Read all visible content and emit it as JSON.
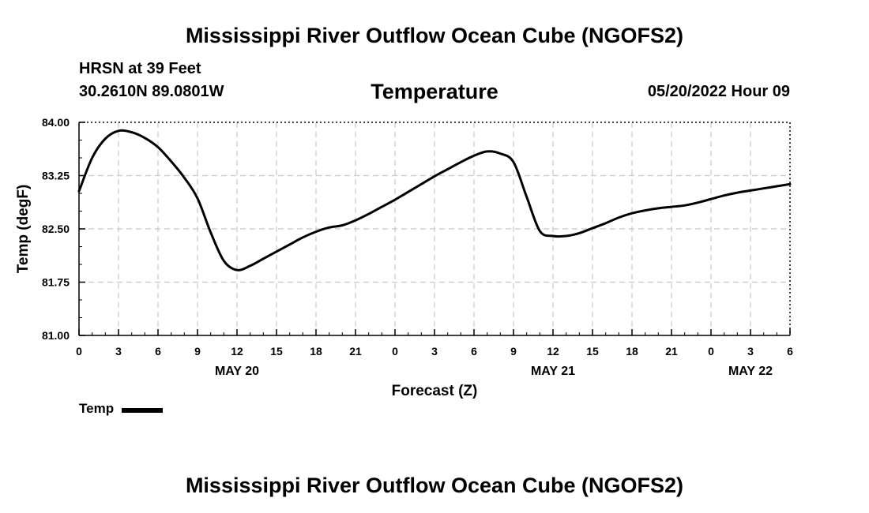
{
  "header": {
    "title": "Mississippi River Outflow Ocean Cube (NGOFS2)",
    "station": "HRSN at 39 Feet",
    "coords": "30.2610N  89.0801W",
    "subtitle": "Temperature",
    "datetime": "05/20/2022 Hour 09"
  },
  "footer": {
    "title": "Mississippi River Outflow Ocean Cube (NGOFS2)"
  },
  "legend": {
    "label": "Temp"
  },
  "chart_data": {
    "type": "line",
    "title": "Temperature",
    "xlabel": "Forecast (Z)",
    "ylabel": "Temp (degF)",
    "xlim": [
      0,
      54
    ],
    "ylim": [
      81.0,
      84.0
    ],
    "yticks": [
      81.0,
      81.75,
      82.5,
      83.25,
      84.0
    ],
    "ytick_labels": [
      "81.00",
      "81.75",
      "82.50",
      "83.25",
      "84.00"
    ],
    "xticks": [
      0,
      3,
      6,
      9,
      12,
      15,
      18,
      21,
      24,
      27,
      30,
      33,
      36,
      39,
      42,
      45,
      48,
      51,
      54
    ],
    "xtick_labels": [
      "0",
      "3",
      "6",
      "9",
      "12",
      "15",
      "18",
      "21",
      "0",
      "3",
      "6",
      "9",
      "12",
      "15",
      "18",
      "21",
      "0",
      "3",
      "6"
    ],
    "date_labels": [
      {
        "x": 12,
        "label": "MAY 20"
      },
      {
        "x": 36,
        "label": "MAY 21"
      },
      {
        "x": 51,
        "label": "MAY 22"
      }
    ],
    "grid": true,
    "legend": "bottom-left",
    "series": [
      {
        "name": "Temp",
        "color": "#000000",
        "x": [
          0,
          1,
          2,
          3,
          4,
          5,
          6,
          7,
          8,
          9,
          10,
          11,
          12,
          13,
          14,
          15,
          16,
          17,
          18,
          19,
          20,
          21,
          22,
          23,
          24,
          25,
          26,
          27,
          28,
          29,
          30,
          31,
          32,
          33,
          34,
          35,
          36,
          37,
          38,
          39,
          40,
          41,
          42,
          43,
          44,
          45,
          46,
          47,
          48,
          49,
          50,
          51,
          52,
          53,
          54
        ],
        "values": [
          83.03,
          83.5,
          83.77,
          83.88,
          83.86,
          83.78,
          83.65,
          83.45,
          83.22,
          82.93,
          82.45,
          82.05,
          81.92,
          81.98,
          82.08,
          82.18,
          82.28,
          82.38,
          82.46,
          82.52,
          82.55,
          82.62,
          82.71,
          82.81,
          82.91,
          83.02,
          83.13,
          83.24,
          83.34,
          83.44,
          83.53,
          83.59,
          83.56,
          83.44,
          82.95,
          82.47,
          82.4,
          82.4,
          82.44,
          82.51,
          82.58,
          82.66,
          82.72,
          82.76,
          82.79,
          82.81,
          82.83,
          82.87,
          82.92,
          82.97,
          83.01,
          83.04,
          83.07,
          83.1,
          83.13
        ]
      }
    ]
  }
}
